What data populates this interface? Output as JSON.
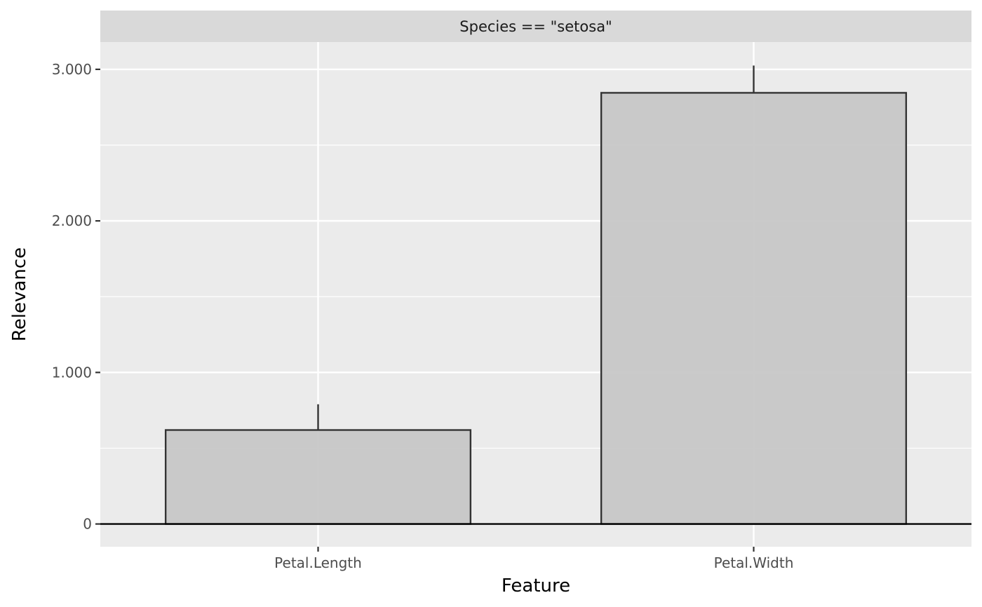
{
  "chart_data": {
    "type": "bar",
    "facet_label": "Species == \"setosa\"",
    "xlabel": "Feature",
    "ylabel": "Relevance",
    "categories": [
      "Petal.Length",
      "Petal.Width"
    ],
    "values": [
      0.62,
      2.845
    ],
    "error_upper": [
      0.79,
      3.025
    ],
    "ylim": [
      -0.15,
      3.18
    ],
    "y_ticks": [
      0,
      1,
      2,
      3
    ],
    "y_tick_labels": [
      "0",
      "1.000",
      "2.000",
      "3.000"
    ],
    "grid": true,
    "legend": "none",
    "colors": {
      "panel_bg": "#ebebeb",
      "strip_bg": "#d9d9d9",
      "grid": "#ffffff",
      "bar_fill": "#c6c6c6",
      "bar_stroke": "#333333",
      "zero_line": "#000000"
    }
  }
}
